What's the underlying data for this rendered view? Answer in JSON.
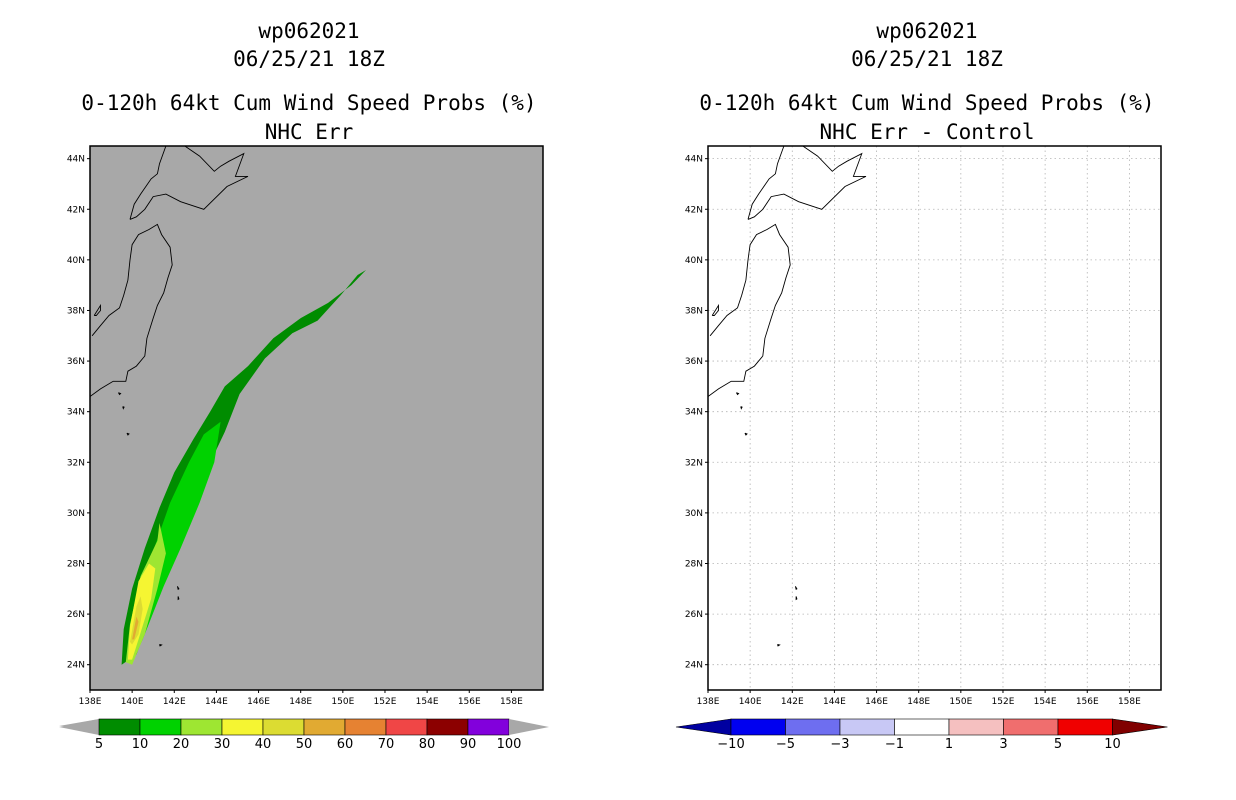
{
  "colors": {
    "ocean_left": "#a8a8a8",
    "ocean_right": "#ffffff",
    "prob_scale": [
      "#008c00",
      "#00d200",
      "#9ee632",
      "#f5f532",
      "#dcdc32",
      "#e1aa32",
      "#e68232",
      "#f04646",
      "#8c0000",
      "#8200dc"
    ],
    "diff_scale": [
      "#0000a0",
      "#0000f0",
      "#6e6ef0",
      "#c8c8f5",
      "#ffffff",
      "#f5c0c0",
      "#f06e6e",
      "#f00000",
      "#800000"
    ]
  },
  "left": {
    "title_line1": "wp062021",
    "title_line2": "06/25/21 18Z",
    "title_line3": "0-120h 64kt Cum Wind Speed Probs (%)",
    "title_line4": "NHC Err",
    "colorbar_labels": [
      "5",
      "10",
      "20",
      "30",
      "40",
      "50",
      "60",
      "70",
      "80",
      "90",
      "100"
    ]
  },
  "right": {
    "title_line1": "wp062021",
    "title_line2": "06/25/21 18Z",
    "title_line3": "0-120h 64kt Cum Wind Speed Probs (%)",
    "title_line4": "NHC Err - Control",
    "colorbar_labels": [
      "-10",
      "-5",
      "-3",
      "-1",
      "1",
      "3",
      "5",
      "10"
    ]
  },
  "axes": {
    "lat_labels": [
      "44N",
      "42N",
      "40N",
      "38N",
      "36N",
      "34N",
      "32N",
      "30N",
      "28N",
      "26N",
      "24N"
    ],
    "lon_labels": [
      "138E",
      "140E",
      "142E",
      "144E",
      "146E",
      "148E",
      "150E",
      "152E",
      "154E",
      "156E",
      "158E"
    ]
  },
  "chart_data": [
    {
      "type": "map",
      "title": "0-120h 64kt Cum Wind Speed Probs (%)",
      "subtitle": "NHC Err",
      "storm": "wp062021",
      "time": "06/25/21 18Z",
      "lon_range": [
        138,
        159.5
      ],
      "lat_range": [
        23,
        44.5
      ],
      "colorbar": {
        "levels": [
          5,
          10,
          20,
          30,
          40,
          50,
          60,
          70,
          80,
          90,
          100
        ],
        "units": "%"
      },
      "probability_swath": [
        {
          "threshold": 5,
          "outline": [
            [
              139.5,
              24.0
            ],
            [
              139.6,
              25.4
            ],
            [
              140.0,
              27.0
            ],
            [
              140.6,
              28.6
            ],
            [
              141.3,
              30.2
            ],
            [
              142.0,
              31.6
            ],
            [
              142.9,
              32.9
            ],
            [
              143.7,
              34.0
            ],
            [
              144.4,
              35.0
            ],
            [
              145.5,
              35.8
            ],
            [
              146.7,
              36.9
            ],
            [
              148.0,
              37.7
            ],
            [
              149.3,
              38.3
            ],
            [
              150.4,
              39.0
            ],
            [
              151.1,
              39.6
            ],
            [
              150.7,
              39.4
            ],
            [
              149.9,
              38.6
            ],
            [
              148.8,
              37.6
            ],
            [
              147.6,
              37.1
            ],
            [
              146.3,
              36.1
            ],
            [
              145.1,
              34.7
            ],
            [
              144.4,
              33.2
            ],
            [
              143.6,
              31.8
            ],
            [
              142.8,
              30.3
            ],
            [
              142.0,
              28.8
            ],
            [
              141.5,
              27.3
            ],
            [
              140.8,
              25.7
            ],
            [
              140.2,
              24.4
            ]
          ]
        },
        {
          "threshold": 10,
          "outline": [
            [
              139.8,
              24.2
            ],
            [
              140.4,
              26.7
            ],
            [
              141.0,
              28.5
            ],
            [
              141.8,
              30.4
            ],
            [
              142.7,
              32.0
            ],
            [
              143.4,
              33.1
            ],
            [
              144.2,
              33.6
            ],
            [
              143.9,
              32.0
            ],
            [
              143.2,
              30.4
            ],
            [
              142.3,
              28.6
            ],
            [
              141.5,
              27.1
            ],
            [
              140.5,
              25.0
            ],
            [
              140.0,
              24.1
            ]
          ]
        },
        {
          "threshold": 20,
          "outline": [
            [
              139.7,
              24.1
            ],
            [
              139.9,
              25.6
            ],
            [
              140.4,
              27.5
            ],
            [
              141.2,
              28.9
            ],
            [
              141.3,
              29.6
            ],
            [
              141.6,
              28.4
            ],
            [
              141.2,
              27.0
            ],
            [
              140.6,
              25.2
            ],
            [
              140.0,
              24.0
            ]
          ]
        },
        {
          "threshold": 30,
          "outline": [
            [
              139.8,
              24.2
            ],
            [
              139.9,
              25.5
            ],
            [
              140.3,
              27.3
            ],
            [
              140.8,
              28.0
            ],
            [
              141.1,
              27.8
            ],
            [
              140.9,
              26.6
            ],
            [
              140.3,
              25.0
            ],
            [
              140.0,
              24.2
            ]
          ]
        },
        {
          "threshold": 40,
          "outline": [
            [
              139.9,
              24.9
            ],
            [
              140.2,
              26.3
            ],
            [
              140.4,
              26.7
            ],
            [
              140.5,
              26.2
            ],
            [
              140.3,
              25.2
            ],
            [
              140.0,
              24.8
            ]
          ]
        },
        {
          "threshold": 50,
          "outline": [
            [
              140.0,
              25.0
            ],
            [
              140.2,
              25.9
            ],
            [
              140.3,
              25.7
            ],
            [
              140.1,
              25.0
            ]
          ]
        }
      ]
    },
    {
      "type": "map",
      "title": "0-120h 64kt Cum Wind Speed Probs (%)",
      "subtitle": "NHC Err - Control",
      "storm": "wp062021",
      "time": "06/25/21 18Z",
      "lon_range": [
        138,
        159.5
      ],
      "lat_range": [
        23,
        44.5
      ],
      "colorbar": {
        "levels": [
          -10,
          -5,
          -3,
          -1,
          1,
          3,
          5,
          10
        ],
        "units": "%"
      },
      "difference_field": "no shaded differences (all values between -1 and 1)"
    }
  ]
}
